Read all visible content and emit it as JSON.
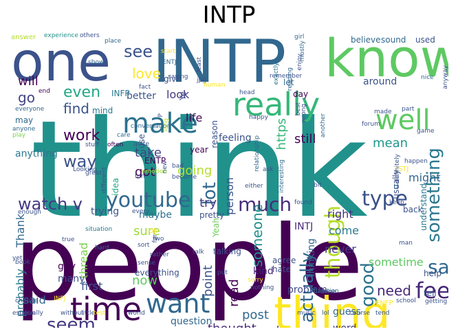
{
  "title": "INTP",
  "words": [
    {
      "t": "think",
      "c": "#21918c"
    },
    {
      "t": "people",
      "c": "#440154"
    },
    {
      "t": "INTP",
      "c": "#31688e"
    },
    {
      "t": "know",
      "c": "#5ec962"
    },
    {
      "t": "one",
      "c": "#3b528b"
    },
    {
      "t": "thing",
      "c": "#fde725"
    },
    {
      "t": "really",
      "c": "#35b779"
    },
    {
      "t": "make",
      "c": "#2c728e"
    },
    {
      "t": "well",
      "c": "#5ec962"
    },
    {
      "t": "time",
      "c": "#440154"
    },
    {
      "t": "want",
      "c": "#31688e"
    },
    {
      "t": "say",
      "c": "#31688e"
    },
    {
      "t": "feel",
      "c": "#482878"
    },
    {
      "t": "something",
      "c": "#2a788e"
    },
    {
      "t": "youtube",
      "c": "#31688e"
    },
    {
      "t": "watch v",
      "c": "#443983"
    },
    {
      "t": "much",
      "c": "#472d7b"
    },
    {
      "t": "type",
      "c": "#3b528b"
    },
    {
      "t": "good",
      "c": "#2c728e"
    },
    {
      "t": "seem",
      "c": "#443983"
    },
    {
      "t": "though",
      "c": "#b5de2b"
    },
    {
      "t": "actually",
      "c": "#31688e"
    },
    {
      "t": "see",
      "c": "#3b528b"
    },
    {
      "t": "love",
      "c": "#fde725"
    },
    {
      "t": "way",
      "c": "#3b528b"
    },
    {
      "t": "work",
      "c": "#440154"
    },
    {
      "t": "lot",
      "c": "#31688e"
    },
    {
      "t": "even",
      "c": "#22a884"
    },
    {
      "t": "find",
      "c": "#3b528b"
    },
    {
      "t": "go",
      "c": "#414487"
    },
    {
      "t": "will",
      "c": "#440154"
    },
    {
      "t": "need",
      "c": "#482878"
    },
    {
      "t": "https",
      "c": "#35b779"
    },
    {
      "t": "mean",
      "c": "#1f988b"
    },
    {
      "t": "someone",
      "c": "#21918c"
    },
    {
      "t": "life",
      "c": "#440154"
    },
    {
      "t": "take",
      "c": "#414487"
    },
    {
      "t": "going",
      "c": "#b5de2b"
    },
    {
      "t": "got",
      "c": "#440154"
    },
    {
      "t": "try",
      "c": "#443983"
    },
    {
      "t": "still",
      "c": "#440154"
    },
    {
      "t": "look",
      "c": "#443983"
    },
    {
      "t": "post",
      "c": "#31688e"
    },
    {
      "t": "thought",
      "c": "#472d7b"
    },
    {
      "t": "friend",
      "c": "#31688e"
    },
    {
      "t": "read",
      "c": "#440154"
    },
    {
      "t": "point",
      "c": "#3b528b"
    },
    {
      "t": "person",
      "c": "#3b528b"
    },
    {
      "t": "sure",
      "c": "#a0da39"
    },
    {
      "t": "now",
      "c": "#5ec962"
    },
    {
      "t": "said",
      "c": "#31688e"
    },
    {
      "t": "first",
      "c": "#3b528b"
    },
    {
      "t": "thread",
      "c": "#7ad151"
    },
    {
      "t": "probably",
      "c": "#2a788e"
    },
    {
      "t": "Thank",
      "c": "#31688e"
    },
    {
      "t": "question",
      "c": "#31688e"
    },
    {
      "t": "always",
      "c": "#482878"
    },
    {
      "t": "never",
      "c": "#443983"
    },
    {
      "t": "come",
      "c": "#2a788e"
    },
    {
      "t": "right",
      "c": "#46327e"
    },
    {
      "t": "might",
      "c": "#31688e"
    },
    {
      "t": "sometime",
      "c": "#5ec962"
    },
    {
      "t": "INTJ",
      "c": "#482878"
    },
    {
      "t": "thinking",
      "c": "#31688e"
    },
    {
      "t": "problem",
      "c": "#3e4a89"
    },
    {
      "t": "guess",
      "c": "#31688e"
    },
    {
      "t": "word",
      "c": "#443983"
    },
    {
      "t": "kind",
      "c": "#482878"
    },
    {
      "t": "guy",
      "c": "#440154"
    },
    {
      "t": "many",
      "c": "#3b528b"
    },
    {
      "t": "trying",
      "c": "#3b528b"
    },
    {
      "t": "maybe",
      "c": "#2c728e"
    },
    {
      "t": "anything",
      "c": "#2a788e"
    },
    {
      "t": "may",
      "c": "#31688e"
    },
    {
      "t": "better",
      "c": "#3b528b"
    },
    {
      "t": "give",
      "c": "#3b528b"
    },
    {
      "t": "mind",
      "c": "#2a788e"
    },
    {
      "t": "INFP",
      "c": "#2a788e"
    },
    {
      "t": "Ye",
      "c": "#3b528b"
    },
    {
      "t": "feeling",
      "c": "#3b528b"
    },
    {
      "t": "reason",
      "c": "#3b528b"
    },
    {
      "t": "around",
      "c": "#3b528b"
    },
    {
      "t": "believe",
      "c": "#31688e"
    },
    {
      "t": "sound",
      "c": "#31688e"
    },
    {
      "t": "used",
      "c": "#3b528b"
    },
    {
      "t": "day",
      "c": "#440154"
    },
    {
      "t": "let",
      "c": "#31688e"
    },
    {
      "t": "usually",
      "c": "#3b528b"
    },
    {
      "t": "understand",
      "c": "#2a788e"
    },
    {
      "t": "u",
      "c": "#31688e"
    },
    {
      "t": "back",
      "c": "#3b528b"
    },
    {
      "t": "Yeah",
      "c": "#6ece58"
    },
    {
      "t": "pretty",
      "c": "#3b528b"
    },
    {
      "t": "ENTP",
      "c": "#440154"
    },
    {
      "t": "idea",
      "c": "#22a884"
    },
    {
      "t": "use",
      "c": "#3b528b"
    },
    {
      "t": "everything",
      "c": "#3b528b"
    },
    {
      "t": "talking",
      "c": "#3b528b"
    },
    {
      "t": "agree",
      "c": "#3b528b"
    },
    {
      "t": "hate",
      "c": "#3b528b"
    },
    {
      "t": "tell",
      "c": "#3b528b"
    },
    {
      "t": "help",
      "c": "#3b528b"
    },
    {
      "t": "year",
      "c": "#440154"
    },
    {
      "t": "ENFP",
      "c": "#fde725"
    },
    {
      "t": "ISTJ",
      "c": "#fde725"
    },
    {
      "t": "answer",
      "c": "#b5de2b"
    },
    {
      "t": "experience",
      "c": "#21918c"
    },
    {
      "t": "others",
      "c": "#3b528b"
    },
    {
      "t": "place",
      "c": "#31688e"
    },
    {
      "t": "girl",
      "c": "#31688e"
    },
    {
      "t": "mostly",
      "c": "#31688e"
    },
    {
      "t": "start",
      "c": "#fde725"
    },
    {
      "t": "ENTJ",
      "c": "#31688e"
    },
    {
      "t": "saying",
      "c": "#3b528b"
    },
    {
      "t": "jpg",
      "c": "#3b528b"
    },
    {
      "t": "remember",
      "c": "#3b528b"
    },
    {
      "t": "reading",
      "c": "#31688e"
    },
    {
      "t": "exactly",
      "c": "#2c728e"
    },
    {
      "t": "enjoy",
      "c": "#3b528b"
    },
    {
      "t": "anyway",
      "c": "#3b528b"
    },
    {
      "t": "nice",
      "c": "#31688e"
    },
    {
      "t": "show",
      "c": "#31688e"
    },
    {
      "t": "end",
      "c": "#440154"
    },
    {
      "t": "everyone",
      "c": "#31688e"
    },
    {
      "t": "anyone",
      "c": "#31688e"
    },
    {
      "t": "play",
      "c": "#7ad151"
    },
    {
      "t": "care",
      "c": "#31688e"
    },
    {
      "t": "stuff",
      "c": "#3b528b"
    },
    {
      "t": "often",
      "c": "#440154"
    },
    {
      "t": "fact",
      "c": "#3b528b"
    },
    {
      "t": "human",
      "c": "#fde725"
    },
    {
      "t": "best",
      "c": "#3b528b"
    },
    {
      "t": "wrong",
      "c": "#3b528b"
    },
    {
      "t": "forum",
      "c": "#3b528b"
    },
    {
      "t": "conversation",
      "c": "#31688e"
    },
    {
      "t": "quite",
      "c": "#3b528b"
    },
    {
      "t": "long",
      "c": "#b5de2b"
    },
    {
      "t": "happy",
      "c": "#3b528b"
    },
    {
      "t": "made",
      "c": "#3b528b"
    },
    {
      "t": "part",
      "c": "#3b528b"
    },
    {
      "t": "game",
      "c": "#3b528b"
    },
    {
      "t": "relationship",
      "c": "#31688e"
    },
    {
      "t": "another",
      "c": "#31688e"
    },
    {
      "t": "different",
      "c": "#3b528b"
    },
    {
      "t": "emotion",
      "c": "#a0da39"
    },
    {
      "t": "bad",
      "c": "#3b528b"
    },
    {
      "t": "become",
      "c": "#3b528b"
    },
    {
      "t": "fun",
      "c": "#3b528b"
    },
    {
      "t": "definitely",
      "c": "#3b528b"
    },
    {
      "t": "happen",
      "c": "#3b528b"
    },
    {
      "t": "great",
      "c": "#3b528b"
    },
    {
      "t": "Looking",
      "c": "#3b528b"
    },
    {
      "t": "ask",
      "c": "#3b528b"
    },
    {
      "t": "interesting",
      "c": "#31688e"
    },
    {
      "t": "bit",
      "c": "#3b528b"
    },
    {
      "t": "either",
      "c": "#3b528b"
    },
    {
      "t": "every",
      "c": "#3b528b"
    },
    {
      "t": "found",
      "c": "#3b528b"
    },
    {
      "t": "enough",
      "c": "#3b528b"
    },
    {
      "t": "keep",
      "c": "#3b528b"
    },
    {
      "t": "yet",
      "c": "#3b528b"
    },
    {
      "t": "situation",
      "c": "#2a788e"
    },
    {
      "t": "Oh",
      "c": "#fde725"
    },
    {
      "t": "two",
      "c": "#3b528b"
    },
    {
      "t": "far",
      "c": "#3b528b"
    },
    {
      "t": "true",
      "c": "#3b528b"
    },
    {
      "t": "book",
      "c": "#3b528b"
    },
    {
      "t": "hard",
      "c": "#31688e"
    },
    {
      "t": "sort",
      "c": "#3b528b"
    },
    {
      "t": "rather",
      "c": "#3b528b"
    },
    {
      "t": "sense",
      "c": "#3b528b"
    },
    {
      "t": "talk",
      "c": "#3b528b"
    },
    {
      "t": "put",
      "c": "#3b528b"
    },
    {
      "t": "man",
      "c": "#3b528b"
    },
    {
      "t": "change",
      "c": "#3b528b"
    },
    {
      "t": "INFJ",
      "c": "#fde725"
    },
    {
      "t": "sorry",
      "c": "#fde725"
    },
    {
      "t": "nothing",
      "c": "#3b528b"
    },
    {
      "t": "function",
      "c": "#31688e"
    },
    {
      "t": "done",
      "c": "#3b528b"
    },
    {
      "t": "school",
      "c": "#3b528b"
    },
    {
      "t": "getting",
      "c": "#3b528b"
    },
    {
      "t": "especially",
      "c": "#3b528b"
    },
    {
      "t": "live",
      "c": "#3b528b"
    },
    {
      "t": "without",
      "c": "#3b528b"
    },
    {
      "t": "little",
      "c": "#3b528b"
    },
    {
      "t": "test",
      "c": "#fde725"
    },
    {
      "t": "world",
      "c": "#3b528b"
    },
    {
      "t": "music",
      "c": "#3b528b"
    },
    {
      "t": "lol",
      "c": "#3b528b"
    },
    {
      "t": "course",
      "c": "#3b528b"
    },
    {
      "t": "tend",
      "c": "#3b528b"
    },
    {
      "t": "least",
      "c": "#3b528b"
    },
    {
      "t": "head",
      "c": "#3b528b"
    },
    {
      "t": "P",
      "c": "#3b528b"
    },
    {
      "t": "new",
      "c": "#3b528b"
    },
    {
      "t": "although",
      "c": "#3b528b"
    }
  ]
}
